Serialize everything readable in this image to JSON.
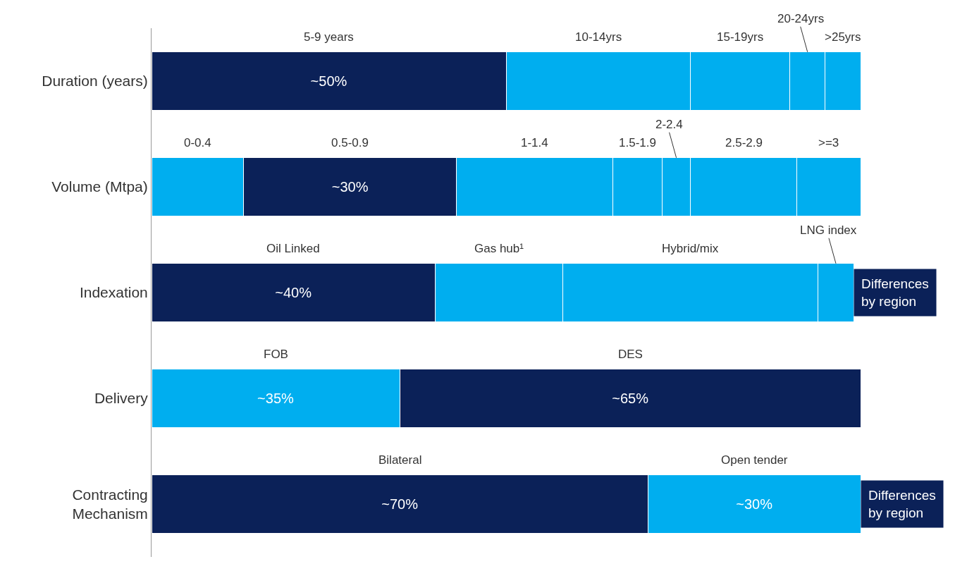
{
  "chart_data": {
    "type": "bar",
    "orientation": "horizontal",
    "stacked": true,
    "categories": [
      "Duration (years)",
      "Volume (Mtpa)",
      "Indexation",
      "Delivery",
      "Contracting Mechanism"
    ],
    "series": [
      {
        "name": "5-9 years",
        "color": "#0b2158",
        "values": [
          50,
          null,
          null,
          null,
          null
        ],
        "value_labels": [
          "~50%",
          null,
          null,
          null,
          null
        ]
      },
      {
        "name": "10-14yrs",
        "color": "#00aeef",
        "values": [
          26,
          null,
          null,
          null,
          null
        ]
      },
      {
        "name": "15-19yrs",
        "color": "#00aeef",
        "values": [
          14,
          null,
          null,
          null,
          null
        ]
      },
      {
        "name": "20-24yrs",
        "color": "#00aeef",
        "values": [
          5,
          null,
          null,
          null,
          null
        ]
      },
      {
        "name": ">25yrs",
        "color": "#00aeef",
        "values": [
          5,
          null,
          null,
          null,
          null
        ]
      },
      {
        "name": "0-0.4",
        "color": "#00aeef",
        "values": [
          null,
          13,
          null,
          null,
          null
        ]
      },
      {
        "name": "0.5-0.9",
        "color": "#0b2158",
        "values": [
          null,
          30,
          null,
          null,
          null
        ],
        "value_labels": [
          null,
          "~30%",
          null,
          null,
          null
        ]
      },
      {
        "name": "1-1.4",
        "color": "#00aeef",
        "values": [
          null,
          22,
          null,
          null,
          null
        ]
      },
      {
        "name": "1.5-1.9",
        "color": "#00aeef",
        "values": [
          null,
          7,
          null,
          null,
          null
        ]
      },
      {
        "name": "2-2.4",
        "color": "#00aeef",
        "values": [
          null,
          4,
          null,
          null,
          null
        ]
      },
      {
        "name": "2.5-2.9",
        "color": "#00aeef",
        "values": [
          null,
          15,
          null,
          null,
          null
        ]
      },
      {
        "name": ">=3",
        "color": "#00aeef",
        "values": [
          null,
          9,
          null,
          null,
          null
        ]
      },
      {
        "name": "Oil Linked",
        "color": "#0b2158",
        "values": [
          null,
          null,
          40,
          null,
          null
        ],
        "value_labels": [
          null,
          null,
          "~40%",
          null,
          null
        ]
      },
      {
        "name": "Gas hub¹",
        "color": "#00aeef",
        "values": [
          null,
          null,
          18,
          null,
          null
        ]
      },
      {
        "name": "Hybrid/mix",
        "color": "#00aeef",
        "values": [
          null,
          null,
          36,
          null,
          null
        ]
      },
      {
        "name": "LNG index",
        "color": "#00aeef",
        "values": [
          null,
          null,
          5,
          null,
          null
        ]
      },
      {
        "name": "FOB",
        "color": "#00aeef",
        "values": [
          null,
          null,
          null,
          35,
          null
        ],
        "value_labels": [
          null,
          null,
          null,
          "~35%",
          null
        ]
      },
      {
        "name": "DES",
        "color": "#0b2158",
        "values": [
          null,
          null,
          null,
          65,
          null
        ],
        "value_labels": [
          null,
          null,
          null,
          "~65%",
          null
        ]
      },
      {
        "name": "Bilateral",
        "color": "#0b2158",
        "values": [
          null,
          null,
          null,
          null,
          70
        ],
        "value_labels": [
          null,
          null,
          null,
          null,
          "~70%"
        ]
      },
      {
        "name": "Open tender",
        "color": "#00aeef",
        "values": [
          null,
          null,
          null,
          null,
          30
        ],
        "value_labels": [
          null,
          null,
          null,
          null,
          "~30%"
        ]
      }
    ],
    "annotations": [
      "Differences by region",
      "Differences by region"
    ]
  }
}
